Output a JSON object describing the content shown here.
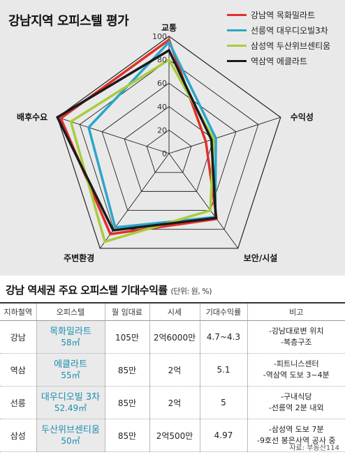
{
  "chart_data": {
    "type": "radar",
    "title": "강남지역 오피스텔 평가",
    "axes": [
      "교통",
      "수익성",
      "보안/시설",
      "주변환경",
      "배후수요"
    ],
    "rlim": [
      0,
      100
    ],
    "ticks": [
      "0",
      "20",
      "40",
      "60",
      "80",
      "100"
    ],
    "legend_position": "top-right",
    "series": [
      {
        "name": "강남역 목화밀라트",
        "color": "#e0302a",
        "values": [
          97,
          33,
          69,
          85,
          97
        ]
      },
      {
        "name": "선릉역 대우디오빌3차",
        "color": "#2aa6c9",
        "values": [
          95,
          42,
          67,
          78,
          72
        ]
      },
      {
        "name": "삼성역 두산위브센티움",
        "color": "#a8cc3c",
        "values": [
          80,
          40,
          60,
          93,
          88
        ]
      },
      {
        "name": "역삼역 에클라트",
        "color": "#1a1a1a",
        "values": [
          88,
          38,
          68,
          81,
          100
        ]
      }
    ]
  },
  "table": {
    "title": "강남 역세권 주요 오피스텔 기대수익률",
    "unit": "(단위: 원, %)",
    "headers": [
      "지하철역",
      "오피스텔",
      "월 임대료",
      "시세",
      "기대수익률",
      "비고"
    ],
    "rows": [
      {
        "station": "강남",
        "name": "목화밀라트",
        "area": "58㎡",
        "rent": "105만",
        "price": "2억6000만",
        "yield": "4.7~4.3",
        "notes": [
          "-강남대로변 위치",
          "-복층구조"
        ]
      },
      {
        "station": "역삼",
        "name": "에클라트",
        "area": "55㎡",
        "rent": "85만",
        "price": "2억",
        "yield": "5.1",
        "notes": [
          "-피트니스센터",
          "-역삼역 도보 3~4분"
        ]
      },
      {
        "station": "선릉",
        "name": "대우디오빌 3차",
        "area": "52.49㎡",
        "rent": "85만",
        "price": "2억",
        "yield": "5",
        "notes": [
          "-구내식당",
          "-선릉역 2분 내외"
        ]
      },
      {
        "station": "삼성",
        "name": "두산위브센티움",
        "area": "50㎡",
        "rent": "85만",
        "price": "2억500만",
        "yield": "4.97",
        "notes": [
          "-삼성역 도보 7분",
          "-9호선 봉은사역 공사 중"
        ]
      }
    ]
  },
  "source": "자료: 부동산114"
}
